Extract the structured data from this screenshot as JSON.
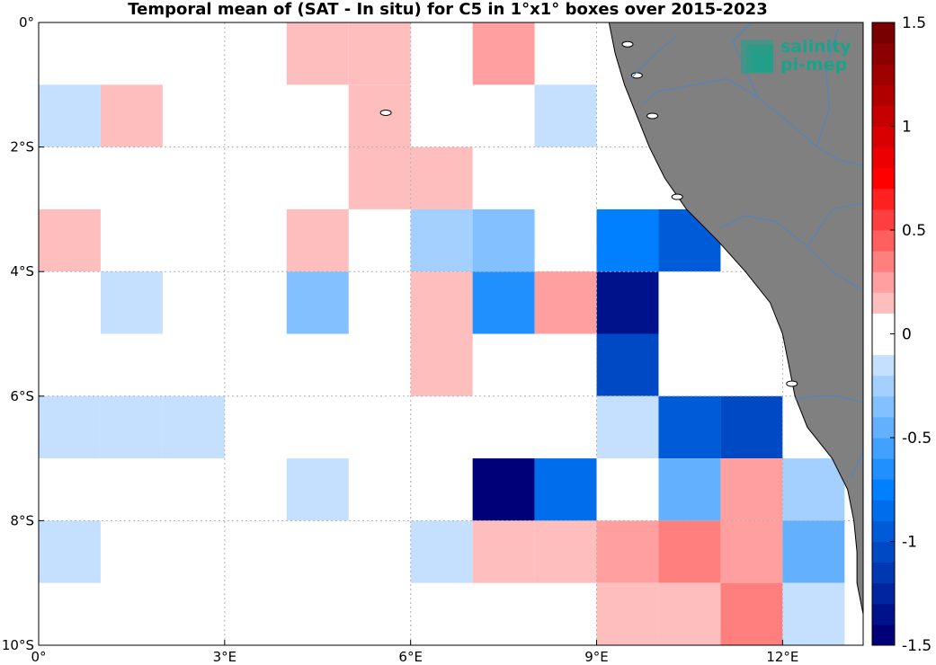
{
  "title": "Temporal mean of (SAT - In situ) for C5 in 1°x1° boxes over 2015-2023",
  "logo": {
    "line1": "salinity",
    "line2": "pi-mep",
    "icon": "salinity-pimep-logo-icon"
  },
  "colors": {
    "land": "#808080",
    "rivers": "#4a86c5",
    "coast": "#000000",
    "grid": "#b0b0b0"
  },
  "chart_data": {
    "type": "heatmap",
    "xlim": [
      0,
      13.3
    ],
    "ylim": [
      -10,
      0
    ],
    "grid": true,
    "x_ticks": [
      {
        "value": 0,
        "label": "0°"
      },
      {
        "value": 3,
        "label": "3°E"
      },
      {
        "value": 6,
        "label": "6°E"
      },
      {
        "value": 9,
        "label": "9°E"
      },
      {
        "value": 12,
        "label": "12°E"
      }
    ],
    "y_ticks": [
      {
        "value": 0,
        "label": "0°"
      },
      {
        "value": -2,
        "label": "2°S"
      },
      {
        "value": -4,
        "label": "4°S"
      },
      {
        "value": -6,
        "label": "6°S"
      },
      {
        "value": -8,
        "label": "8°S"
      },
      {
        "value": -10,
        "label": "10°S"
      }
    ],
    "colorbar": {
      "min": -1.5,
      "max": 1.5,
      "levels": 30,
      "ticks": [
        {
          "value": 1.5,
          "label": "1.5"
        },
        {
          "value": 1,
          "label": "1"
        },
        {
          "value": 0.5,
          "label": "0.5"
        },
        {
          "value": 0,
          "label": "0"
        },
        {
          "value": -0.5,
          "label": "-0.5"
        },
        {
          "value": -1,
          "label": "-1"
        },
        {
          "value": -1.5,
          "label": "-1.5"
        }
      ]
    },
    "cells": [
      {
        "lon": 4,
        "lat": 0,
        "value": 0.15
      },
      {
        "lon": 5,
        "lat": 0,
        "value": 0.15
      },
      {
        "lon": 7,
        "lat": 0,
        "value": 0.25
      },
      {
        "lon": 0,
        "lat": -1,
        "value": -0.15
      },
      {
        "lon": 1,
        "lat": -1,
        "value": 0.15
      },
      {
        "lon": 5,
        "lat": -1,
        "value": 0.15
      },
      {
        "lon": 8,
        "lat": -1,
        "value": -0.15
      },
      {
        "lon": 5,
        "lat": -2,
        "value": 0.15
      },
      {
        "lon": 6,
        "lat": -2,
        "value": 0.15
      },
      {
        "lon": 0,
        "lat": -3,
        "value": 0.15
      },
      {
        "lon": 4,
        "lat": -3,
        "value": 0.15
      },
      {
        "lon": 6,
        "lat": -3,
        "value": -0.25
      },
      {
        "lon": 7,
        "lat": -3,
        "value": -0.35
      },
      {
        "lon": 9,
        "lat": -3,
        "value": -0.75
      },
      {
        "lon": 10,
        "lat": -3,
        "value": -0.95
      },
      {
        "lon": 1,
        "lat": -4,
        "value": -0.15
      },
      {
        "lon": 4,
        "lat": -4,
        "value": -0.4
      },
      {
        "lon": 6,
        "lat": -4,
        "value": 0.15
      },
      {
        "lon": 7,
        "lat": -4,
        "value": -0.65
      },
      {
        "lon": 8,
        "lat": -4,
        "value": 0.25
      },
      {
        "lon": 9,
        "lat": -4,
        "value": -1.35
      },
      {
        "lon": 6,
        "lat": -5,
        "value": 0.15
      },
      {
        "lon": 9,
        "lat": -5,
        "value": -1.05
      },
      {
        "lon": 0,
        "lat": -6,
        "value": -0.15
      },
      {
        "lon": 1,
        "lat": -6,
        "value": -0.15
      },
      {
        "lon": 2,
        "lat": -6,
        "value": -0.15
      },
      {
        "lon": 9,
        "lat": -6,
        "value": -0.15
      },
      {
        "lon": 10,
        "lat": -6,
        "value": -0.95
      },
      {
        "lon": 11,
        "lat": -6,
        "value": -1.05
      },
      {
        "lon": 4,
        "lat": -7,
        "value": -0.15
      },
      {
        "lon": 7,
        "lat": -7,
        "value": -1.5
      },
      {
        "lon": 8,
        "lat": -7,
        "value": -0.8
      },
      {
        "lon": 10,
        "lat": -7,
        "value": -0.45
      },
      {
        "lon": 11,
        "lat": -7,
        "value": 0.25
      },
      {
        "lon": 12,
        "lat": -7,
        "value": -0.25
      },
      {
        "lon": 0,
        "lat": -8,
        "value": -0.15
      },
      {
        "lon": 6,
        "lat": -8,
        "value": -0.15
      },
      {
        "lon": 7,
        "lat": -8,
        "value": 0.15
      },
      {
        "lon": 8,
        "lat": -8,
        "value": 0.15
      },
      {
        "lon": 9,
        "lat": -8,
        "value": 0.25
      },
      {
        "lon": 10,
        "lat": -8,
        "value": 0.4
      },
      {
        "lon": 11,
        "lat": -8,
        "value": 0.25
      },
      {
        "lon": 12,
        "lat": -8,
        "value": -0.45
      },
      {
        "lon": 9,
        "lat": -9,
        "value": 0.15
      },
      {
        "lon": 10,
        "lat": -9,
        "value": 0.15
      },
      {
        "lon": 11,
        "lat": -9,
        "value": 0.4
      },
      {
        "lon": 12,
        "lat": -9,
        "value": -0.15
      }
    ],
    "coastline": [
      [
        9.2,
        0
      ],
      [
        9.3,
        -0.5
      ],
      [
        9.45,
        -1.0
      ],
      [
        9.65,
        -1.5
      ],
      [
        9.85,
        -2.0
      ],
      [
        10.1,
        -2.5
      ],
      [
        10.45,
        -3.0
      ],
      [
        10.95,
        -3.5
      ],
      [
        11.4,
        -4.0
      ],
      [
        11.8,
        -4.5
      ],
      [
        12.0,
        -5.0
      ],
      [
        12.1,
        -5.5
      ],
      [
        12.2,
        -6.0
      ],
      [
        12.4,
        -6.5
      ],
      [
        12.8,
        -7.0
      ],
      [
        13.05,
        -7.5
      ],
      [
        13.15,
        -8.0
      ],
      [
        13.2,
        -8.5
      ],
      [
        13.2,
        -9.0
      ],
      [
        13.3,
        -9.5
      ]
    ],
    "islands": [
      [
        9.9,
        -1.5
      ],
      [
        9.65,
        -0.85
      ],
      [
        9.5,
        -0.35
      ],
      [
        10.3,
        -2.8
      ],
      [
        12.15,
        -5.8
      ],
      [
        5.6,
        -1.45
      ]
    ],
    "rivers": [
      [
        [
          13.3,
          -2.3
        ],
        [
          12.9,
          -2.2
        ],
        [
          12.55,
          -2.0
        ],
        [
          12.1,
          -1.6
        ],
        [
          11.6,
          -1.2
        ],
        [
          11.1,
          -0.9
        ],
        [
          10.6,
          -1.0
        ],
        [
          10.0,
          -1.1
        ],
        [
          9.75,
          -1.3
        ]
      ],
      [
        [
          12.55,
          -2.0
        ],
        [
          12.75,
          -1.4
        ],
        [
          12.7,
          -0.7
        ],
        [
          12.9,
          -0.1
        ]
      ],
      [
        [
          11.6,
          -1.2
        ],
        [
          11.2,
          -0.3
        ],
        [
          11.5,
          0
        ]
      ],
      [
        [
          13.3,
          -4.3
        ],
        [
          12.8,
          -4.0
        ],
        [
          12.4,
          -3.6
        ],
        [
          11.9,
          -3.2
        ],
        [
          11.4,
          -3.1
        ],
        [
          11.0,
          -3.3
        ]
      ],
      [
        [
          12.4,
          -3.6
        ],
        [
          12.8,
          -3.0
        ],
        [
          13.3,
          -2.9
        ]
      ],
      [
        [
          13.3,
          -6.1
        ],
        [
          12.9,
          -6.0
        ],
        [
          12.5,
          -6.0
        ],
        [
          12.2,
          -6.05
        ]
      ],
      [
        [
          13.3,
          -6.9
        ],
        [
          13.1,
          -7.3
        ]
      ],
      [
        [
          10.3,
          -0.2
        ],
        [
          9.9,
          -0.55
        ],
        [
          9.55,
          -0.9
        ]
      ]
    ]
  }
}
